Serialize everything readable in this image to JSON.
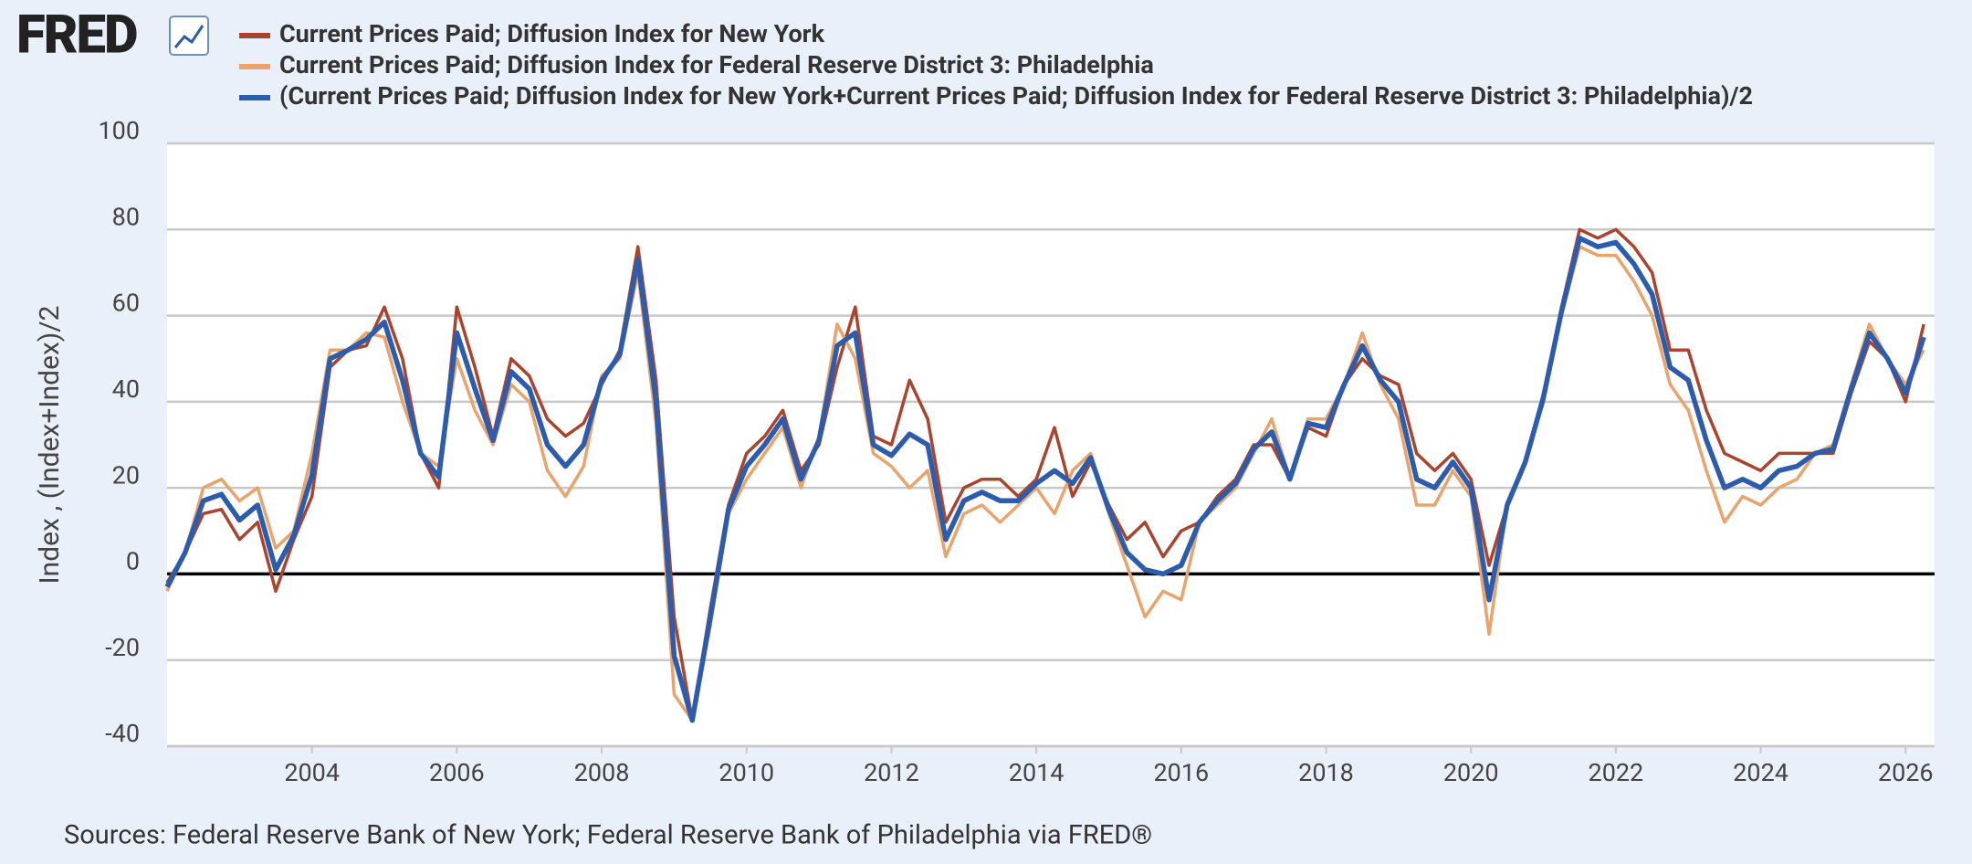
{
  "branding": {
    "logo": "FRED"
  },
  "chart_data": {
    "type": "line",
    "ylabel": "Index , (Index+Index)/2",
    "source": "Sources: Federal Reserve Bank of New York; Federal Reserve Bank of Philadelphia via FRED®",
    "xlim": [
      2002,
      2026.4
    ],
    "xticks": [
      2004,
      2006,
      2008,
      2010,
      2012,
      2014,
      2016,
      2018,
      2020,
      2022,
      2024,
      2026
    ],
    "ylim": [
      -40,
      100
    ],
    "yticks": [
      -40,
      -20,
      0,
      20,
      40,
      60,
      80,
      100
    ],
    "grid": true,
    "x": [
      2002,
      2002.25,
      2002.5,
      2002.75,
      2003,
      2003.25,
      2003.5,
      2003.75,
      2004,
      2004.25,
      2004.5,
      2004.75,
      2005,
      2005.25,
      2005.5,
      2005.75,
      2006,
      2006.25,
      2006.5,
      2006.75,
      2007,
      2007.25,
      2007.5,
      2007.75,
      2008,
      2008.25,
      2008.5,
      2008.75,
      2009,
      2009.25,
      2009.5,
      2009.75,
      2010,
      2010.25,
      2010.5,
      2010.75,
      2011,
      2011.25,
      2011.5,
      2011.75,
      2012,
      2012.25,
      2012.5,
      2012.75,
      2013,
      2013.25,
      2013.5,
      2013.75,
      2014,
      2014.25,
      2014.5,
      2014.75,
      2015,
      2015.25,
      2015.5,
      2015.75,
      2016,
      2016.25,
      2016.5,
      2016.75,
      2017,
      2017.25,
      2017.5,
      2017.75,
      2018,
      2018.25,
      2018.5,
      2018.75,
      2019,
      2019.25,
      2019.5,
      2019.75,
      2020,
      2020.25,
      2020.5,
      2020.75,
      2021,
      2021.25,
      2021.5,
      2021.75,
      2022,
      2022.25,
      2022.5,
      2022.75,
      2023,
      2023.25,
      2023.5,
      2023.75,
      2024,
      2024.25,
      2024.5,
      2024.75,
      2025,
      2025.25,
      2025.5,
      2025.75,
      2026,
      2026.25
    ],
    "series": [
      {
        "name": "Current Prices Paid; Diffusion Index for New York",
        "color": "#a9442e",
        "values": [
          -2,
          5,
          14,
          15,
          8,
          12,
          -4,
          8,
          18,
          48,
          52,
          53,
          62,
          50,
          28,
          20,
          62,
          48,
          32,
          50,
          46,
          36,
          32,
          35,
          44,
          52,
          76,
          45,
          -10,
          -34,
          -8,
          16,
          28,
          32,
          38,
          24,
          30,
          48,
          62,
          32,
          30,
          45,
          36,
          12,
          20,
          22,
          22,
          18,
          22,
          34,
          18,
          26,
          16,
          8,
          12,
          4,
          10,
          12,
          18,
          22,
          30,
          30,
          22,
          34,
          32,
          44,
          50,
          46,
          44,
          28,
          24,
          28,
          22,
          2,
          16,
          26,
          40,
          62,
          80,
          78,
          80,
          76,
          70,
          52,
          52,
          38,
          28,
          26,
          24,
          28,
          28,
          28,
          28,
          42,
          54,
          50,
          40,
          58
        ]
      },
      {
        "name": "Current Prices Paid; Diffusion Index for Federal Reserve District 3: Philadelphia",
        "color": "#e8a46c",
        "values": [
          -4,
          5,
          20,
          22,
          17,
          20,
          6,
          10,
          28,
          52,
          52,
          56,
          55,
          40,
          28,
          25,
          50,
          38,
          30,
          44,
          40,
          24,
          18,
          25,
          46,
          50,
          70,
          35,
          -28,
          -34,
          -12,
          14,
          22,
          28,
          34,
          20,
          32,
          58,
          50,
          28,
          25,
          20,
          24,
          4,
          14,
          16,
          12,
          16,
          20,
          14,
          24,
          28,
          14,
          2,
          -10,
          -4,
          -6,
          12,
          16,
          20,
          28,
          36,
          22,
          36,
          36,
          44,
          56,
          44,
          36,
          16,
          16,
          24,
          18,
          -14,
          16,
          26,
          42,
          60,
          76,
          74,
          74,
          68,
          60,
          44,
          38,
          24,
          12,
          18,
          16,
          20,
          22,
          28,
          30,
          44,
          58,
          50,
          44,
          52
        ]
      },
      {
        "name": "(Current Prices Paid; Diffusion Index for New York+Current Prices Paid; Diffusion Index for Federal Reserve District 3: Philadelphia)/2",
        "color": "#2e5cad",
        "values": [
          -3,
          5,
          17,
          18.5,
          12.5,
          16,
          1,
          9,
          23,
          50,
          52,
          54.5,
          58.5,
          45,
          28,
          22.5,
          56,
          43,
          31,
          47,
          43,
          30,
          25,
          30,
          45,
          51,
          73,
          40,
          -19,
          -34,
          -10,
          15,
          25,
          30,
          36,
          22,
          31,
          53,
          56,
          30,
          27.5,
          32.5,
          30,
          8,
          17,
          19,
          17,
          17,
          21,
          24,
          21,
          27,
          15,
          5,
          1,
          0,
          2,
          12,
          17,
          21,
          29,
          33,
          22,
          35,
          34,
          44,
          53,
          45,
          40,
          22,
          20,
          26,
          20,
          -6,
          16,
          26,
          41,
          61,
          78,
          76,
          77,
          72,
          65,
          48,
          45,
          31,
          20,
          22,
          20,
          24,
          25,
          28,
          29,
          43,
          56,
          50,
          42,
          55
        ]
      }
    ]
  }
}
